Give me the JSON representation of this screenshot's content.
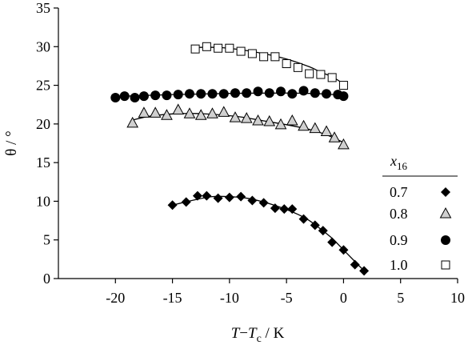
{
  "chart_data": {
    "type": "scatter",
    "xlim": [
      -25,
      10
    ],
    "ylim": [
      0,
      35
    ],
    "x_ticks": [
      "-20",
      "-15",
      "-10",
      "-5",
      "0",
      "5",
      "10"
    ],
    "x_tick_values": [
      -20,
      -15,
      -10,
      -5,
      0,
      5,
      10
    ],
    "y_ticks": [
      "0",
      "5",
      "10",
      "15",
      "20",
      "25",
      "30",
      "35"
    ],
    "y_tick_values": [
      0,
      5,
      10,
      15,
      20,
      25,
      30,
      35
    ],
    "xlabel": {
      "T": "T",
      "dash": "−",
      "Tc_T": "T",
      "Tc_sub": "c",
      "unit": " / K"
    },
    "ylabel": "θ / °",
    "grid": false,
    "legend_position": "bottom-right",
    "legend_title": {
      "var": "x",
      "sub": "16"
    },
    "series": [
      {
        "name": "0.7",
        "marker": "diamond",
        "color": "#000000",
        "points": [
          [
            -15,
            9.5
          ],
          [
            -13.8,
            9.9
          ],
          [
            -12.8,
            10.7
          ],
          [
            -12,
            10.7
          ],
          [
            -11,
            10.4
          ],
          [
            -10,
            10.5
          ],
          [
            -9,
            10.6
          ],
          [
            -8,
            10.1
          ],
          [
            -7,
            9.8
          ],
          [
            -6,
            9.1
          ],
          [
            -5.2,
            9.0
          ],
          [
            -4.5,
            9.0
          ],
          [
            -3.5,
            7.7
          ],
          [
            -2.5,
            6.9
          ],
          [
            -1.8,
            6.2
          ],
          [
            -1,
            4.7
          ],
          [
            0,
            3.7
          ],
          [
            1,
            1.8
          ],
          [
            1.8,
            1.0
          ]
        ],
        "curve": [
          [
            -15,
            9.5
          ],
          [
            -13,
            10.2
          ],
          [
            -11.5,
            10.6
          ],
          [
            -10,
            10.6
          ],
          [
            -8.5,
            10.4
          ],
          [
            -7,
            9.9
          ],
          [
            -5.5,
            9.2
          ],
          [
            -4,
            8.3
          ],
          [
            -3,
            7.5
          ],
          [
            -2,
            6.4
          ],
          [
            -1,
            5.2
          ],
          [
            0,
            3.7
          ],
          [
            1,
            2.2
          ],
          [
            1.8,
            1.0
          ]
        ]
      },
      {
        "name": "0.8",
        "marker": "triangle-open",
        "color": "#d0d0d0",
        "points": [
          [
            -18.5,
            20.1
          ],
          [
            -17.5,
            21.4
          ],
          [
            -16.5,
            21.4
          ],
          [
            -15.5,
            21.1
          ],
          [
            -14.5,
            21.8
          ],
          [
            -13.5,
            21.3
          ],
          [
            -12.5,
            21.1
          ],
          [
            -11.5,
            21.3
          ],
          [
            -10.5,
            21.5
          ],
          [
            -9.5,
            20.8
          ],
          [
            -8.5,
            20.7
          ],
          [
            -7.5,
            20.4
          ],
          [
            -6.5,
            20.3
          ],
          [
            -5.5,
            19.9
          ],
          [
            -4.5,
            20.4
          ],
          [
            -3.5,
            19.7
          ],
          [
            -2.5,
            19.4
          ],
          [
            -1.5,
            19.0
          ],
          [
            -0.8,
            18.2
          ],
          [
            0,
            17.3
          ]
        ],
        "curve": [
          [
            -18.5,
            20.5
          ],
          [
            -17,
            21.0
          ],
          [
            -15,
            21.3
          ],
          [
            -13,
            21.35
          ],
          [
            -11,
            21.2
          ],
          [
            -9,
            20.9
          ],
          [
            -7,
            20.4
          ],
          [
            -5,
            19.9
          ],
          [
            -3,
            19.3
          ],
          [
            -1.5,
            18.6
          ],
          [
            0,
            17.6
          ]
        ]
      },
      {
        "name": "0.9",
        "marker": "circle",
        "color": "#000000",
        "points": [
          [
            -20,
            23.4
          ],
          [
            -19.2,
            23.6
          ],
          [
            -18.3,
            23.4
          ],
          [
            -17.5,
            23.6
          ],
          [
            -16.5,
            23.7
          ],
          [
            -15.5,
            23.7
          ],
          [
            -14.5,
            23.8
          ],
          [
            -13.5,
            23.9
          ],
          [
            -12.5,
            23.9
          ],
          [
            -11.5,
            23.9
          ],
          [
            -10.5,
            23.9
          ],
          [
            -9.5,
            24.0
          ],
          [
            -8.5,
            24.0
          ],
          [
            -7.5,
            24.2
          ],
          [
            -6.5,
            24.0
          ],
          [
            -5.5,
            24.2
          ],
          [
            -4.5,
            23.9
          ],
          [
            -3.5,
            24.3
          ],
          [
            -2.5,
            24.0
          ],
          [
            -1.5,
            23.9
          ],
          [
            -0.5,
            23.8
          ],
          [
            0,
            23.6
          ]
        ],
        "curve": [
          [
            -20,
            23.55
          ],
          [
            -15,
            23.8
          ],
          [
            -10,
            23.95
          ],
          [
            -5,
            24.0
          ],
          [
            -2,
            23.9
          ],
          [
            0,
            23.7
          ]
        ]
      },
      {
        "name": "1.0",
        "marker": "square-open",
        "color": "#000000",
        "points": [
          [
            -13,
            29.7
          ],
          [
            -12,
            30.0
          ],
          [
            -11,
            29.8
          ],
          [
            -10,
            29.8
          ],
          [
            -9,
            29.4
          ],
          [
            -8,
            29.1
          ],
          [
            -7,
            28.7
          ],
          [
            -6,
            28.7
          ],
          [
            -5,
            27.8
          ],
          [
            -4,
            27.3
          ],
          [
            -3,
            26.5
          ],
          [
            -2,
            26.4
          ],
          [
            -1,
            26.0
          ],
          [
            0,
            25.0
          ]
        ],
        "curve": [
          [
            -13,
            29.9
          ],
          [
            -11,
            29.9
          ],
          [
            -9,
            29.6
          ],
          [
            -7,
            29.1
          ],
          [
            -5,
            28.4
          ],
          [
            -3,
            27.4
          ],
          [
            -2,
            26.7
          ],
          [
            -1,
            26.1
          ],
          [
            0,
            25.2
          ]
        ]
      }
    ]
  }
}
